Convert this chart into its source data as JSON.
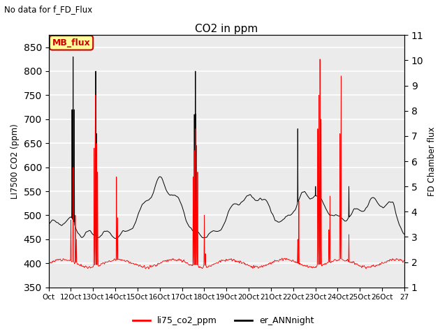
{
  "title": "CO2 in ppm",
  "suptitle": "No data for f_FD_Flux",
  "ylabel_left": "LI7500 CO2 (ppm)",
  "ylabel_right": "FD Chamber flux",
  "ylim_left": [
    350,
    875
  ],
  "ylim_right": [
    1.0,
    11.0
  ],
  "yticks_left": [
    350,
    400,
    450,
    500,
    550,
    600,
    650,
    700,
    750,
    800,
    850
  ],
  "yticks_right": [
    1.0,
    2.0,
    3.0,
    4.0,
    5.0,
    6.0,
    7.0,
    8.0,
    9.0,
    10.0,
    11.0
  ],
  "xtick_labels": [
    "Oct",
    "12Oct",
    "13Oct",
    "14Oct",
    "15Oct",
    "16Oct",
    "17Oct",
    "18Oct",
    "19Oct",
    "20Oct",
    "21Oct",
    "22Oct",
    "23Oct",
    "24Oct",
    "25Oct",
    "26Oct",
    "27"
  ],
  "legend_items": [
    {
      "label": "li75_co2_ppm",
      "color": "#ff0000",
      "linestyle": "-"
    },
    {
      "label": "er_ANNnight",
      "color": "#000000",
      "linestyle": "-"
    }
  ],
  "legend_box_label": "MB_flux",
  "legend_box_color": "#cc0000",
  "legend_box_bg": "#ffff99",
  "background_color": "#ebebeb",
  "grid_color": "#ffffff",
  "n_points": 3840,
  "figsize": [
    6.4,
    4.8
  ],
  "dpi": 100
}
